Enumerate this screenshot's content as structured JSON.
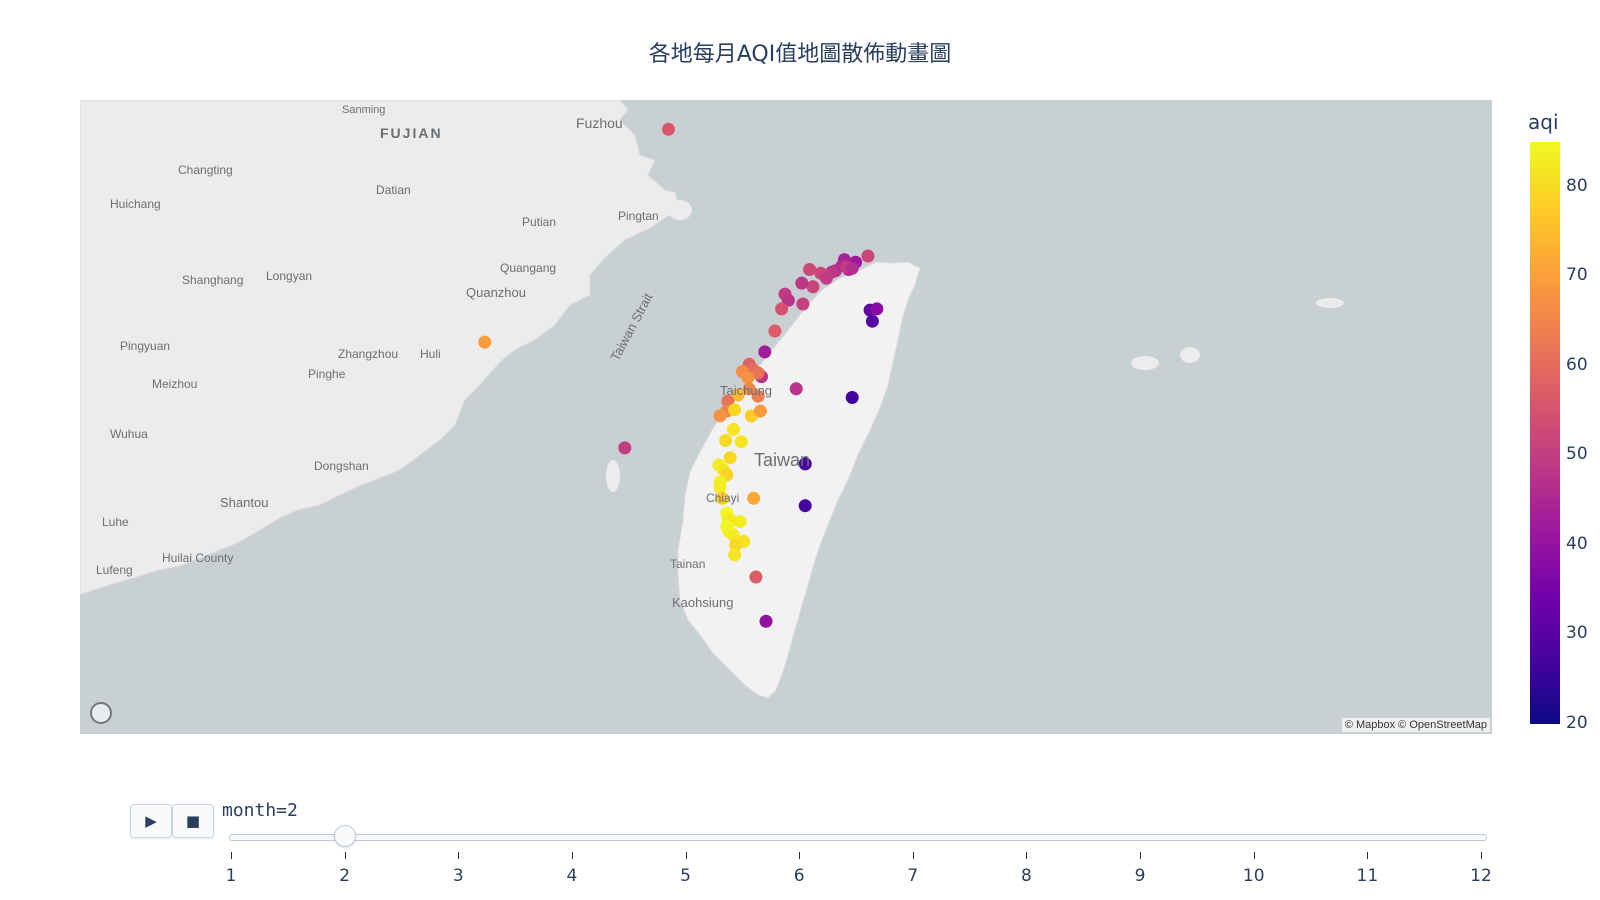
{
  "title": "各地每月AQI值地圖散佈動畫圖",
  "map": {
    "attribution": "© Mapbox © OpenStreetMap",
    "place_labels": [
      "Fuzhou",
      "FUJIAN",
      "Changting",
      "Datian",
      "Huichang",
      "Putian",
      "Pingtan",
      "Quangang",
      "Shanghang",
      "Longyan",
      "Quanzhou",
      "Pingyuan",
      "Zhangzhou",
      "Huli",
      "Pinghe",
      "Meizhou",
      "Taiwan Strait",
      "Wuhua",
      "Dongshan",
      "Shantou",
      "Luhe",
      "Huilai County",
      "Lufeng",
      "Taichung",
      "Taiwan",
      "Chiayi",
      "Tainan",
      "Kaohsiung",
      "Sanming"
    ]
  },
  "colorbar": {
    "title": "aqi",
    "ticks": [
      "80",
      "70",
      "60",
      "50",
      "40",
      "30",
      "20"
    ],
    "min": 20,
    "max": 85
  },
  "animation": {
    "current_label": "month=2",
    "current_value": 2,
    "steps": [
      "1",
      "2",
      "3",
      "4",
      "5",
      "6",
      "7",
      "8",
      "9",
      "10",
      "11",
      "12"
    ]
  },
  "points": [
    {
      "lon": 119.96,
      "lat": 26.16,
      "aqi": 56
    },
    {
      "lon": 118.32,
      "lat": 24.43,
      "aqi": 70
    },
    {
      "lon": 119.57,
      "lat": 23.57,
      "aqi": 50
    },
    {
      "lon": 121.74,
      "lat": 25.13,
      "aqi": 52
    },
    {
      "lon": 121.63,
      "lat": 25.08,
      "aqi": 42
    },
    {
      "lon": 121.53,
      "lat": 25.1,
      "aqi": 44
    },
    {
      "lon": 121.45,
      "lat": 25.01,
      "aqi": 48
    },
    {
      "lon": 121.51,
      "lat": 25.05,
      "aqi": 46
    },
    {
      "lon": 121.57,
      "lat": 25.02,
      "aqi": 45
    },
    {
      "lon": 121.55,
      "lat": 25.04,
      "aqi": 50
    },
    {
      "lon": 121.6,
      "lat": 25.03,
      "aqi": 47
    },
    {
      "lon": 121.42,
      "lat": 25.0,
      "aqi": 49
    },
    {
      "lon": 121.32,
      "lat": 24.99,
      "aqi": 52
    },
    {
      "lon": 121.37,
      "lat": 24.95,
      "aqi": 50
    },
    {
      "lon": 121.22,
      "lat": 25.02,
      "aqi": 53
    },
    {
      "lon": 121.25,
      "lat": 24.88,
      "aqi": 52
    },
    {
      "lon": 121.15,
      "lat": 24.91,
      "aqi": 49
    },
    {
      "lon": 121.0,
      "lat": 24.82,
      "aqi": 50
    },
    {
      "lon": 121.03,
      "lat": 24.77,
      "aqi": 48
    },
    {
      "lon": 121.16,
      "lat": 24.74,
      "aqi": 51
    },
    {
      "lon": 120.97,
      "lat": 24.7,
      "aqi": 55
    },
    {
      "lon": 120.91,
      "lat": 24.52,
      "aqi": 57
    },
    {
      "lon": 120.82,
      "lat": 24.35,
      "aqi": 43
    },
    {
      "lon": 121.76,
      "lat": 24.69,
      "aqi": 32
    },
    {
      "lon": 121.82,
      "lat": 24.7,
      "aqi": 38
    },
    {
      "lon": 121.78,
      "lat": 24.6,
      "aqi": 30
    },
    {
      "lon": 120.79,
      "lat": 24.15,
      "aqi": 48
    },
    {
      "lon": 120.68,
      "lat": 24.25,
      "aqi": 58
    },
    {
      "lon": 120.71,
      "lat": 24.21,
      "aqi": 60
    },
    {
      "lon": 120.76,
      "lat": 24.18,
      "aqi": 62
    },
    {
      "lon": 120.62,
      "lat": 24.19,
      "aqi": 67
    },
    {
      "lon": 120.67,
      "lat": 24.14,
      "aqi": 68
    },
    {
      "lon": 120.68,
      "lat": 24.05,
      "aqi": 66
    },
    {
      "lon": 120.58,
      "lat": 24.0,
      "aqi": 75
    },
    {
      "lon": 120.76,
      "lat": 23.99,
      "aqi": 64
    },
    {
      "lon": 121.1,
      "lat": 24.05,
      "aqi": 48
    },
    {
      "lon": 121.6,
      "lat": 23.98,
      "aqi": 27
    },
    {
      "lon": 120.49,
      "lat": 23.95,
      "aqi": 62
    },
    {
      "lon": 120.48,
      "lat": 23.87,
      "aqi": 66
    },
    {
      "lon": 120.42,
      "lat": 23.83,
      "aqi": 68
    },
    {
      "lon": 120.55,
      "lat": 23.88,
      "aqi": 80
    },
    {
      "lon": 120.7,
      "lat": 23.83,
      "aqi": 78
    },
    {
      "lon": 120.78,
      "lat": 23.87,
      "aqi": 70
    },
    {
      "lon": 120.54,
      "lat": 23.72,
      "aqi": 82
    },
    {
      "lon": 120.47,
      "lat": 23.63,
      "aqi": 80
    },
    {
      "lon": 120.61,
      "lat": 23.62,
      "aqi": 82
    },
    {
      "lon": 120.51,
      "lat": 23.49,
      "aqi": 80
    },
    {
      "lon": 120.41,
      "lat": 23.43,
      "aqi": 83
    },
    {
      "lon": 120.45,
      "lat": 23.39,
      "aqi": 82
    },
    {
      "lon": 120.48,
      "lat": 23.35,
      "aqi": 79
    },
    {
      "lon": 120.42,
      "lat": 23.29,
      "aqi": 84
    },
    {
      "lon": 120.42,
      "lat": 23.25,
      "aqi": 83
    },
    {
      "lon": 120.44,
      "lat": 23.16,
      "aqi": 78
    },
    {
      "lon": 120.72,
      "lat": 23.16,
      "aqi": 72
    },
    {
      "lon": 120.48,
      "lat": 23.04,
      "aqi": 85
    },
    {
      "lon": 120.49,
      "lat": 22.99,
      "aqi": 84
    },
    {
      "lon": 120.52,
      "lat": 22.98,
      "aqi": 82
    },
    {
      "lon": 120.6,
      "lat": 22.97,
      "aqi": 83
    },
    {
      "lon": 120.48,
      "lat": 22.93,
      "aqi": 85
    },
    {
      "lon": 120.5,
      "lat": 22.89,
      "aqi": 84
    },
    {
      "lon": 120.54,
      "lat": 22.86,
      "aqi": 83
    },
    {
      "lon": 120.56,
      "lat": 22.78,
      "aqi": 80
    },
    {
      "lon": 120.63,
      "lat": 22.81,
      "aqi": 81
    },
    {
      "lon": 120.55,
      "lat": 22.7,
      "aqi": 82
    },
    {
      "lon": 121.18,
      "lat": 23.44,
      "aqi": 27
    },
    {
      "lon": 121.18,
      "lat": 23.1,
      "aqi": 27
    },
    {
      "lon": 120.74,
      "lat": 22.52,
      "aqi": 57
    },
    {
      "lon": 120.83,
      "lat": 22.16,
      "aqi": 40
    }
  ]
}
